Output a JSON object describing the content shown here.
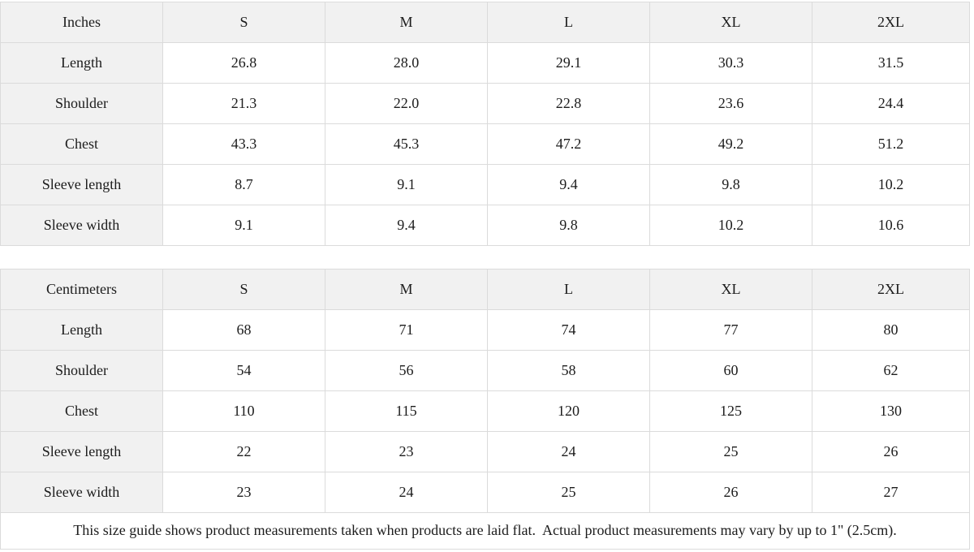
{
  "colors": {
    "header_bg": "#f1f1f1",
    "label_bg": "#f1f1f1",
    "cell_bg": "#ffffff",
    "border": "#dbdbdb",
    "text": "#1c1c1c"
  },
  "tables": [
    {
      "unit_label": "Inches",
      "size_headers": [
        "S",
        "M",
        "L",
        "XL",
        "2XL"
      ],
      "rows": [
        {
          "label": "Length",
          "values": [
            "26.8",
            "28.0",
            "29.1",
            "30.3",
            "31.5"
          ]
        },
        {
          "label": "Shoulder",
          "values": [
            "21.3",
            "22.0",
            "22.8",
            "23.6",
            "24.4"
          ]
        },
        {
          "label": "Chest",
          "values": [
            "43.3",
            "45.3",
            "47.2",
            "49.2",
            "51.2"
          ]
        },
        {
          "label": "Sleeve length",
          "values": [
            "8.7",
            "9.1",
            "9.4",
            "9.8",
            "10.2"
          ]
        },
        {
          "label": "Sleeve width",
          "values": [
            "9.1",
            "9.4",
            "9.8",
            "10.2",
            "10.6"
          ]
        }
      ]
    },
    {
      "unit_label": "Centimeters",
      "size_headers": [
        "S",
        "M",
        "L",
        "XL",
        "2XL"
      ],
      "rows": [
        {
          "label": "Length",
          "values": [
            "68",
            "71",
            "74",
            "77",
            "80"
          ]
        },
        {
          "label": "Shoulder",
          "values": [
            "54",
            "56",
            "58",
            "60",
            "62"
          ]
        },
        {
          "label": "Chest",
          "values": [
            "110",
            "115",
            "120",
            "125",
            "130"
          ]
        },
        {
          "label": "Sleeve length",
          "values": [
            "22",
            "23",
            "24",
            "25",
            "26"
          ]
        },
        {
          "label": "Sleeve width",
          "values": [
            "23",
            "24",
            "25",
            "26",
            "27"
          ]
        }
      ]
    }
  ],
  "footer": {
    "note": "This size guide shows product measurements taken when products are laid flat.  Actual product measurements may vary by up to 1\" (2.5cm)."
  }
}
